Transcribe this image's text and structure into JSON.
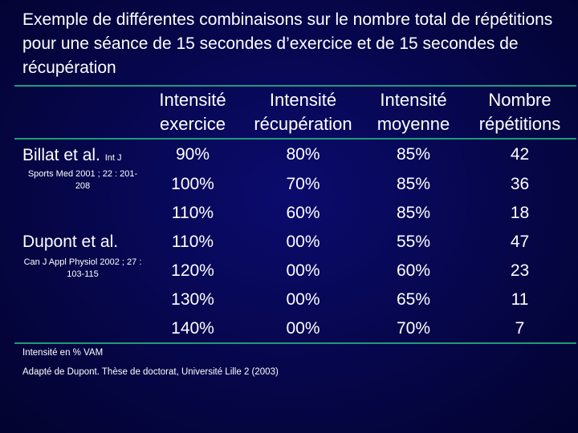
{
  "title": "Exemple de différentes combinaisons sur le nombre total de répétitions pour une séance de 15 secondes d’exercice et de 15 secondes de récupération",
  "table": {
    "headers": [
      {
        "line1": "Intensité",
        "line2": "exercice"
      },
      {
        "line1": "Intensité",
        "line2": "récupération"
      },
      {
        "line1": "Intensité",
        "line2": "moyenne"
      },
      {
        "line1": "Nombre",
        "line2": "répétitions"
      }
    ],
    "rows": [
      [
        "90%",
        "80%",
        "85%",
        "42"
      ],
      [
        "100%",
        "70%",
        "85%",
        "36"
      ],
      [
        "110%",
        "60%",
        "85%",
        "18"
      ],
      [
        "110%",
        "00%",
        "55%",
        "47"
      ],
      [
        "120%",
        "00%",
        "60%",
        "23"
      ],
      [
        "130%",
        "00%",
        "65%",
        "11"
      ],
      [
        "140%",
        "00%",
        "70%",
        "7"
      ]
    ]
  },
  "references": [
    {
      "name": "Billat et al.",
      "journal": "Int J",
      "source": "Sports Med 2001 ; 22 : 201-208"
    },
    {
      "name": "Dupont et al.",
      "journal": "",
      "source": "Can J Appl Physiol 2002 ; 27 : 103-115"
    }
  ],
  "footnotes": {
    "line1": "Intensité en % VAM",
    "line2": "Adapté de Dupont. Thèse de doctorat, Université Lille 2 (2003)"
  }
}
